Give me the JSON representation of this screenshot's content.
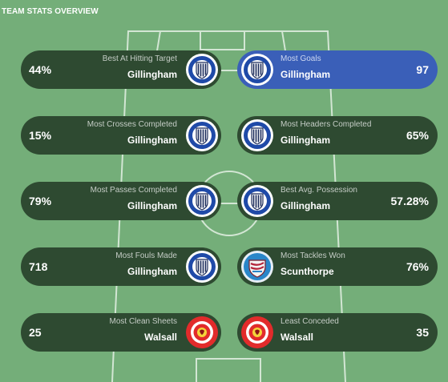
{
  "header": {
    "title": "TEAM STATS OVERVIEW"
  },
  "colors": {
    "pitch": "#74ae79",
    "pill": "#2e4a31",
    "highlight": "#3a5fb8",
    "category_text": "#c5cdc6"
  },
  "stats": [
    {
      "value": "44%",
      "category": "Best At Hitting Target",
      "team": "Gillingham",
      "crest": "gillingham-crest-icon",
      "highlight": false
    },
    {
      "value": "97",
      "category": "Most Goals",
      "team": "Gillingham",
      "crest": "gillingham-crest-icon",
      "highlight": true
    },
    {
      "value": "15%",
      "category": "Most Crosses Completed",
      "team": "Gillingham",
      "crest": "gillingham-crest-icon",
      "highlight": false
    },
    {
      "value": "65%",
      "category": "Most Headers Completed",
      "team": "Gillingham",
      "crest": "gillingham-crest-icon",
      "highlight": false
    },
    {
      "value": "79%",
      "category": "Most Passes Completed",
      "team": "Gillingham",
      "crest": "gillingham-crest-icon",
      "highlight": false
    },
    {
      "value": "57.28%",
      "category": "Best Avg. Possession",
      "team": "Gillingham",
      "crest": "gillingham-crest-icon",
      "highlight": false
    },
    {
      "value": "718",
      "category": "Most Fouls Made",
      "team": "Gillingham",
      "crest": "gillingham-crest-icon",
      "highlight": false
    },
    {
      "value": "76%",
      "category": "Most Tackles Won",
      "team": "Scunthorpe",
      "crest": "scunthorpe-crest-icon",
      "highlight": false
    },
    {
      "value": "25",
      "category": "Most Clean Sheets",
      "team": "Walsall",
      "crest": "walsall-crest-icon",
      "highlight": false
    },
    {
      "value": "35",
      "category": "Least Conceded",
      "team": "Walsall",
      "crest": "walsall-crest-icon",
      "highlight": false
    }
  ]
}
